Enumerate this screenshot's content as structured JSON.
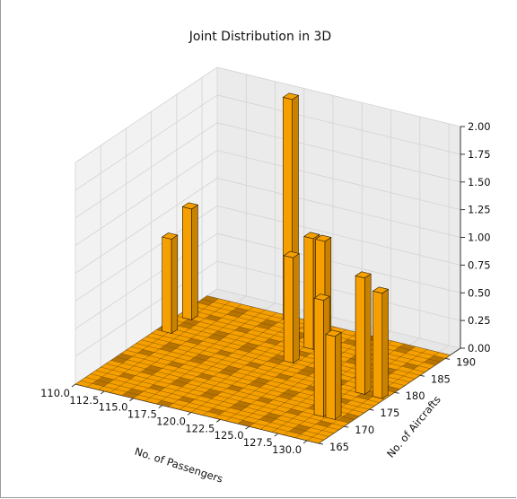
{
  "colors": {
    "bar": "#f5a000",
    "bar_dark": "#c88200",
    "bar_edge": "#2a1a00",
    "base_dark": "#b87400",
    "pane_left": "#f2f2f2",
    "pane_back": "#ebebeb",
    "pane_floor": "#e6e6e6",
    "grid": "#d3d3d3"
  },
  "chart_data": {
    "type": "bar3d",
    "title": "Joint Distribution in 3D",
    "xlabel": "No. of Passengers",
    "ylabel": "No. of Aircrafts",
    "zlabel": "",
    "xlim": [
      110,
      131
    ],
    "ylim": [
      165,
      193
    ],
    "zlim": [
      0,
      2
    ],
    "x_ticks": [
      "110.0",
      "112.5",
      "115.0",
      "117.5",
      "120.0",
      "122.5",
      "125.0",
      "127.5",
      "130.0"
    ],
    "y_ticks": [
      "165",
      "170",
      "175",
      "180",
      "185",
      "190"
    ],
    "z_ticks": [
      "0.00",
      "0.25",
      "0.50",
      "0.75",
      "1.00",
      "1.25",
      "1.50",
      "1.75",
      "2.00"
    ],
    "grid": true,
    "bars": [
      {
        "x": 110.5,
        "y": 181,
        "z": 0.85
      },
      {
        "x": 110.5,
        "y": 185,
        "z": 1.0
      },
      {
        "x": 117.0,
        "y": 190,
        "z": 2.0
      },
      {
        "x": 121.0,
        "y": 181,
        "z": 0.95
      },
      {
        "x": 121.0,
        "y": 185,
        "z": 1.0
      },
      {
        "x": 122.0,
        "y": 185,
        "z": 1.0
      },
      {
        "x": 128.0,
        "y": 171,
        "z": 1.05
      },
      {
        "x": 129.0,
        "y": 171,
        "z": 0.75
      },
      {
        "x": 128.5,
        "y": 178,
        "z": 1.05
      },
      {
        "x": 130.0,
        "y": 178,
        "z": 0.95
      }
    ]
  }
}
